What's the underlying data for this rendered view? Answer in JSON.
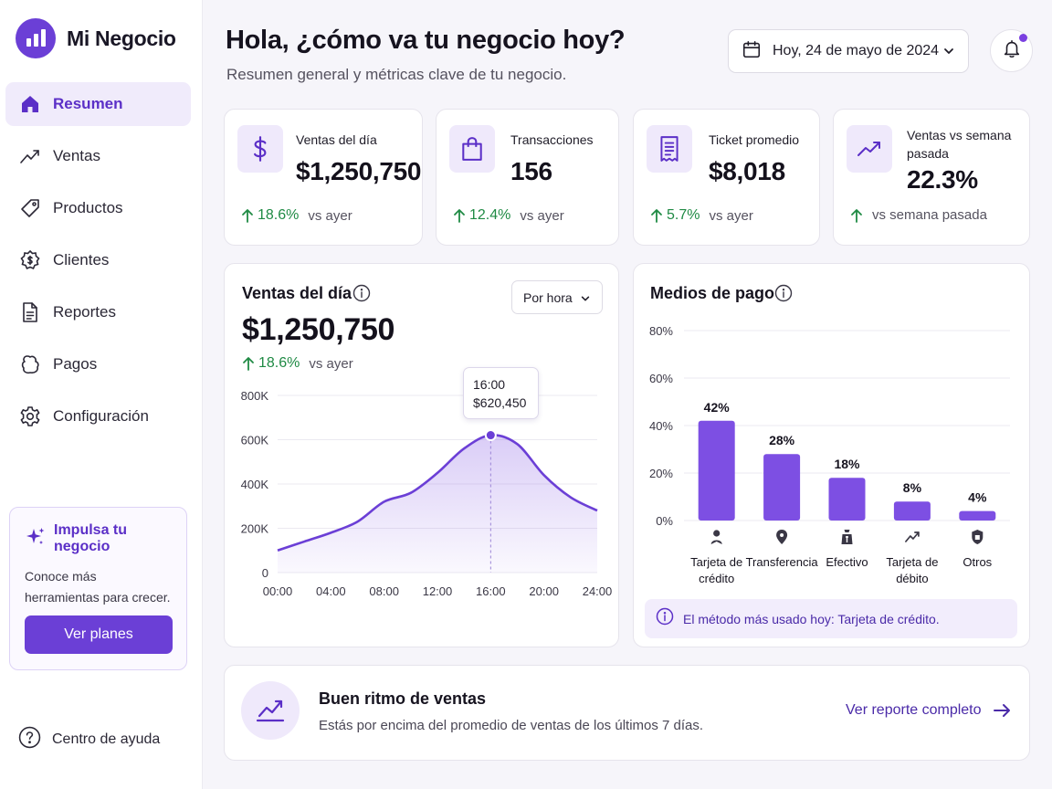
{
  "brand": {
    "name": "Mi Negocio"
  },
  "nav": {
    "items": [
      {
        "label": "Resumen",
        "icon": "home-icon",
        "active": true
      },
      {
        "label": "Ventas",
        "icon": "trend-icon"
      },
      {
        "label": "Productos",
        "icon": "tag-icon"
      },
      {
        "label": "Clientes",
        "icon": "dollar-badge-icon"
      },
      {
        "label": "Reportes",
        "icon": "document-icon"
      },
      {
        "label": "Pagos",
        "icon": "wallet-icon"
      },
      {
        "label": "Configuración",
        "icon": "gear-icon"
      }
    ]
  },
  "promo": {
    "title": "Impulsa tu negocio",
    "text": "Conoce más herramientas para crecer.",
    "button": "Ver planes"
  },
  "help": {
    "label": "Centro de ayuda"
  },
  "header": {
    "title": "Hola, ¿cómo va tu negocio hoy?",
    "subtitle": "Resumen general y métricas clave de tu negocio.",
    "date": "Hoy, 24 de mayo de 2024"
  },
  "kpis": [
    {
      "label": "Ventas del día",
      "value": "$1,250,750",
      "delta": "18.6%",
      "note": "vs ayer",
      "icon": "dollar-icon"
    },
    {
      "label": "Transacciones",
      "value": "156",
      "delta": "12.4%",
      "note": "vs ayer",
      "icon": "bag-icon"
    },
    {
      "label": "Ticket promedio",
      "value": "$8,018",
      "delta": "5.7%",
      "note": "vs ayer",
      "icon": "receipt-icon"
    },
    {
      "label": "Ventas vs semana pasada",
      "value": "22.3%",
      "delta": "",
      "note": "vs semana pasada",
      "icon": "trend-up-icon"
    }
  ],
  "sales": {
    "title": "Ventas del día",
    "select": "Por hora",
    "value": "$1,250,750",
    "delta": "18.6%",
    "note": "vs ayer",
    "tooltip_time": "16:00",
    "tooltip_value": "$620,450"
  },
  "payments": {
    "title": "Medios de pago",
    "note": "El método más usado hoy: Tarjeta de crédito."
  },
  "banner": {
    "title": "Buen ritmo de ventas",
    "text": "Estás por encima del promedio de ventas de los últimos 7 días.",
    "link": "Ver reporte completo"
  },
  "chart_data": [
    {
      "type": "area",
      "title": "Ventas del día",
      "x": [
        "00:00",
        "02:00",
        "04:00",
        "06:00",
        "08:00",
        "10:00",
        "12:00",
        "14:00",
        "16:00",
        "18:00",
        "20:00",
        "22:00",
        "24:00"
      ],
      "y": [
        100000,
        140000,
        180000,
        230000,
        320000,
        360000,
        450000,
        560000,
        620450,
        580000,
        440000,
        340000,
        280000
      ],
      "x_ticks": [
        "00:00",
        "04:00",
        "08:00",
        "12:00",
        "16:00",
        "20:00",
        "24:00"
      ],
      "y_ticks": [
        "0",
        "200K",
        "400K",
        "600K",
        "800K"
      ],
      "ylim": [
        0,
        800000
      ],
      "highlight": {
        "x": "16:00",
        "label": "$620,450"
      },
      "color": "#6b3fd6"
    },
    {
      "type": "bar",
      "title": "Medios de pago",
      "categories": [
        "Tarjeta de crédito",
        "Transferencia",
        "Efectivo",
        "Tarjeta de débito",
        "Otros"
      ],
      "category_lines": [
        [
          "Tarjeta de",
          "crédito"
        ],
        [
          "Transferencia"
        ],
        [
          "Efectivo"
        ],
        [
          "Tarjeta de",
          "débito"
        ],
        [
          "Otros"
        ]
      ],
      "category_icons": [
        "person-icon",
        "location-icon",
        "cash-bag-icon",
        "trend-icon",
        "shield-icon"
      ],
      "values": [
        42,
        28,
        18,
        8,
        4
      ],
      "value_labels": [
        "42%",
        "28%",
        "18%",
        "8%",
        "4%"
      ],
      "y_ticks": [
        "0%",
        "20%",
        "40%",
        "60%",
        "80%"
      ],
      "ylim": [
        0,
        80
      ],
      "color": "#7d4fe3"
    }
  ]
}
